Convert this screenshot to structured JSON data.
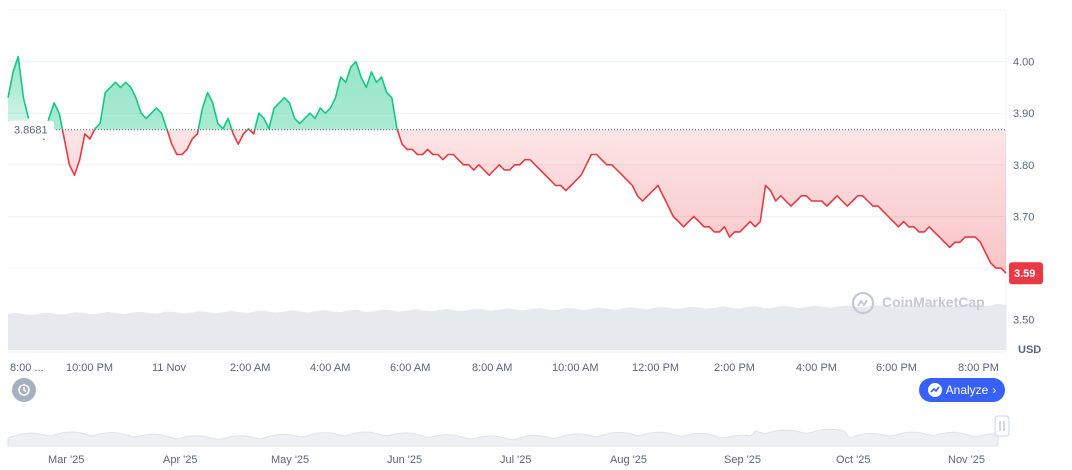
{
  "chart_data": {
    "type": "area",
    "ylabel": "USD",
    "ylim": [
      3.48,
      4.1
    ],
    "y_ticks": [
      "4.00",
      "3.90",
      "3.80",
      "3.70",
      "3.60",
      "3.50"
    ],
    "x_tick_labels": [
      "8:00 ...",
      "10:00 PM",
      "11 Nov",
      "2:00 AM",
      "4:00 AM",
      "6:00 AM",
      "8:00 AM",
      "10:00 AM",
      "12:00 PM",
      "2:00 PM",
      "4:00 PM",
      "6:00 PM",
      "8:00 PM"
    ],
    "reference": {
      "value": 3.8681,
      "label": "3.8681"
    },
    "last": {
      "value": 3.59,
      "label": "3.59"
    },
    "series": [
      {
        "values": [
          3.93,
          3.98,
          4.01,
          3.93,
          3.89,
          null,
          3.86,
          3.85,
          3.89,
          3.92,
          3.9,
          3.85,
          3.8,
          3.78,
          3.81,
          3.86,
          3.85,
          3.87,
          3.88,
          3.94,
          3.95,
          3.96,
          3.95,
          3.96,
          3.95,
          3.93,
          3.9,
          3.89,
          3.9,
          3.91,
          3.9,
          3.87,
          3.84,
          3.82,
          3.82,
          3.83,
          3.85,
          3.86,
          3.91,
          3.94,
          3.92,
          3.88,
          3.87,
          3.89,
          3.86,
          3.84,
          3.86,
          3.87,
          3.86,
          3.9,
          3.89,
          3.87,
          3.91,
          3.92,
          3.93,
          3.92,
          3.89,
          3.88,
          3.89,
          3.9,
          3.89,
          3.91,
          3.9,
          3.91,
          3.93,
          3.97,
          3.96,
          3.99,
          4.0,
          3.97,
          3.95,
          3.98,
          3.96,
          3.97,
          3.94,
          3.93,
          3.87,
          3.84,
          3.83,
          3.83,
          3.82,
          3.82,
          3.83,
          3.82,
          3.82,
          3.81,
          3.82,
          3.82,
          3.81,
          3.8,
          3.8,
          3.79,
          3.8,
          3.79,
          3.78,
          3.79,
          3.8,
          3.79,
          3.79,
          3.8,
          3.8,
          3.81,
          3.81,
          3.8,
          3.79,
          3.78,
          3.77,
          3.76,
          3.76,
          3.75,
          3.76,
          3.77,
          3.78,
          3.8,
          3.82,
          3.82,
          3.81,
          3.8,
          3.8,
          3.79,
          3.78,
          3.77,
          3.76,
          3.74,
          3.73,
          3.74,
          3.75,
          3.76,
          3.74,
          3.72,
          3.7,
          3.69,
          3.68,
          3.69,
          3.7,
          3.69,
          3.68,
          3.68,
          3.67,
          3.67,
          3.68,
          3.66,
          3.67,
          3.67,
          3.68,
          3.69,
          3.68,
          3.69,
          3.76,
          3.75,
          3.73,
          3.74,
          3.73,
          3.72,
          3.73,
          3.74,
          3.74,
          3.73,
          3.73,
          3.73,
          3.72,
          3.73,
          3.74,
          3.73,
          3.72,
          3.73,
          3.74,
          3.74,
          3.73,
          3.72,
          3.72,
          3.71,
          3.7,
          3.69,
          3.68,
          3.69,
          3.68,
          3.68,
          3.67,
          3.67,
          3.68,
          3.67,
          3.66,
          3.65,
          3.64,
          3.65,
          3.65,
          3.66,
          3.66,
          3.66,
          3.65,
          3.63,
          3.61,
          3.6,
          3.6,
          3.59
        ]
      }
    ],
    "colors": {
      "up": "#16c784",
      "down": "#ea3943",
      "last_badge": "#ea3943",
      "volume": "#e6e9ee",
      "grid": "#eff2f5"
    }
  },
  "navigator": {
    "labels": [
      "Mar '25",
      "Apr '25",
      "May '25",
      "Jun '25",
      "Jul '25",
      "Aug '25",
      "Sep '25",
      "Oct '25",
      "Nov '25"
    ]
  },
  "watermark": {
    "text": "CoinMarketCap",
    "icon": "coinmarketcap-logo-icon"
  },
  "buttons": {
    "analyze_label": "Analyze",
    "analyze_icon": "analyze-chart-icon",
    "history_icon": "history-icon"
  }
}
